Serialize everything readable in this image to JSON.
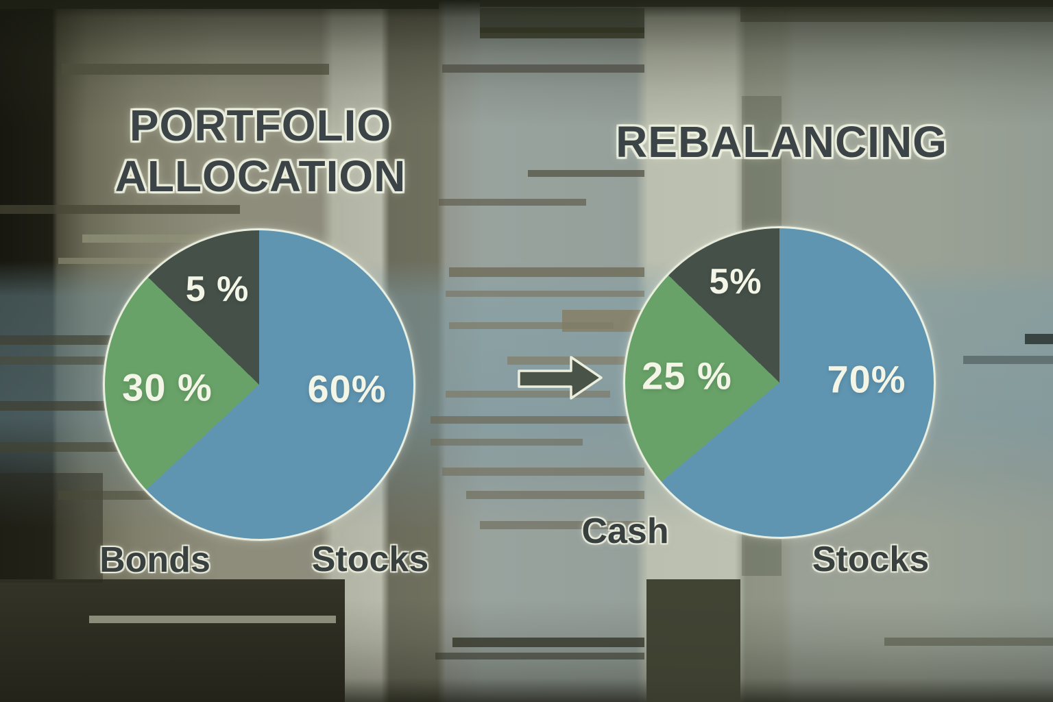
{
  "chart_data": [
    {
      "type": "pie",
      "title": "PORTFOLIO ALLOCATION",
      "title_lines": [
        "PORTFOLIO",
        "ALLOCATION"
      ],
      "legend_position": "below",
      "slices": [
        {
          "name": "Stocks",
          "value_pct": 60,
          "data_label": "60%",
          "color": "#5f95b1",
          "visual_start_deg": 0,
          "visual_end_deg": 227
        },
        {
          "name": "Bonds",
          "value_pct": 30,
          "data_label": "30 %",
          "color": "#68a268",
          "visual_start_deg": 227,
          "visual_end_deg": 314
        },
        {
          "name": "",
          "value_pct": 5,
          "data_label": "5 %",
          "color": "#455049",
          "visual_start_deg": 314,
          "visual_end_deg": 360
        }
      ]
    },
    {
      "type": "pie",
      "title": "REBALANCING",
      "title_lines": [
        "REBALANCING"
      ],
      "legend_position": "below",
      "slices": [
        {
          "name": "Stocks",
          "value_pct": 70,
          "data_label": "70%",
          "color": "#5f95b1",
          "visual_start_deg": 0,
          "visual_end_deg": 230
        },
        {
          "name": "Cash",
          "value_pct": 25,
          "data_label": "25 %",
          "color": "#68a268",
          "visual_start_deg": 230,
          "visual_end_deg": 314
        },
        {
          "name": "",
          "value_pct": 5,
          "data_label": "5%",
          "color": "#455049",
          "visual_start_deg": 314,
          "visual_end_deg": 360
        }
      ]
    }
  ],
  "arrow": {
    "direction": "right",
    "fill": "#4a5347",
    "outline": "#ecefdd"
  },
  "colors": {
    "stocks_blue": "#5f95b1",
    "green": "#68a268",
    "dark_slice": "#455049",
    "title_text": "#3c4447",
    "label_text": "#394140",
    "pct_text": "#f3f5e6",
    "halo_cream": "#ebeedd"
  }
}
